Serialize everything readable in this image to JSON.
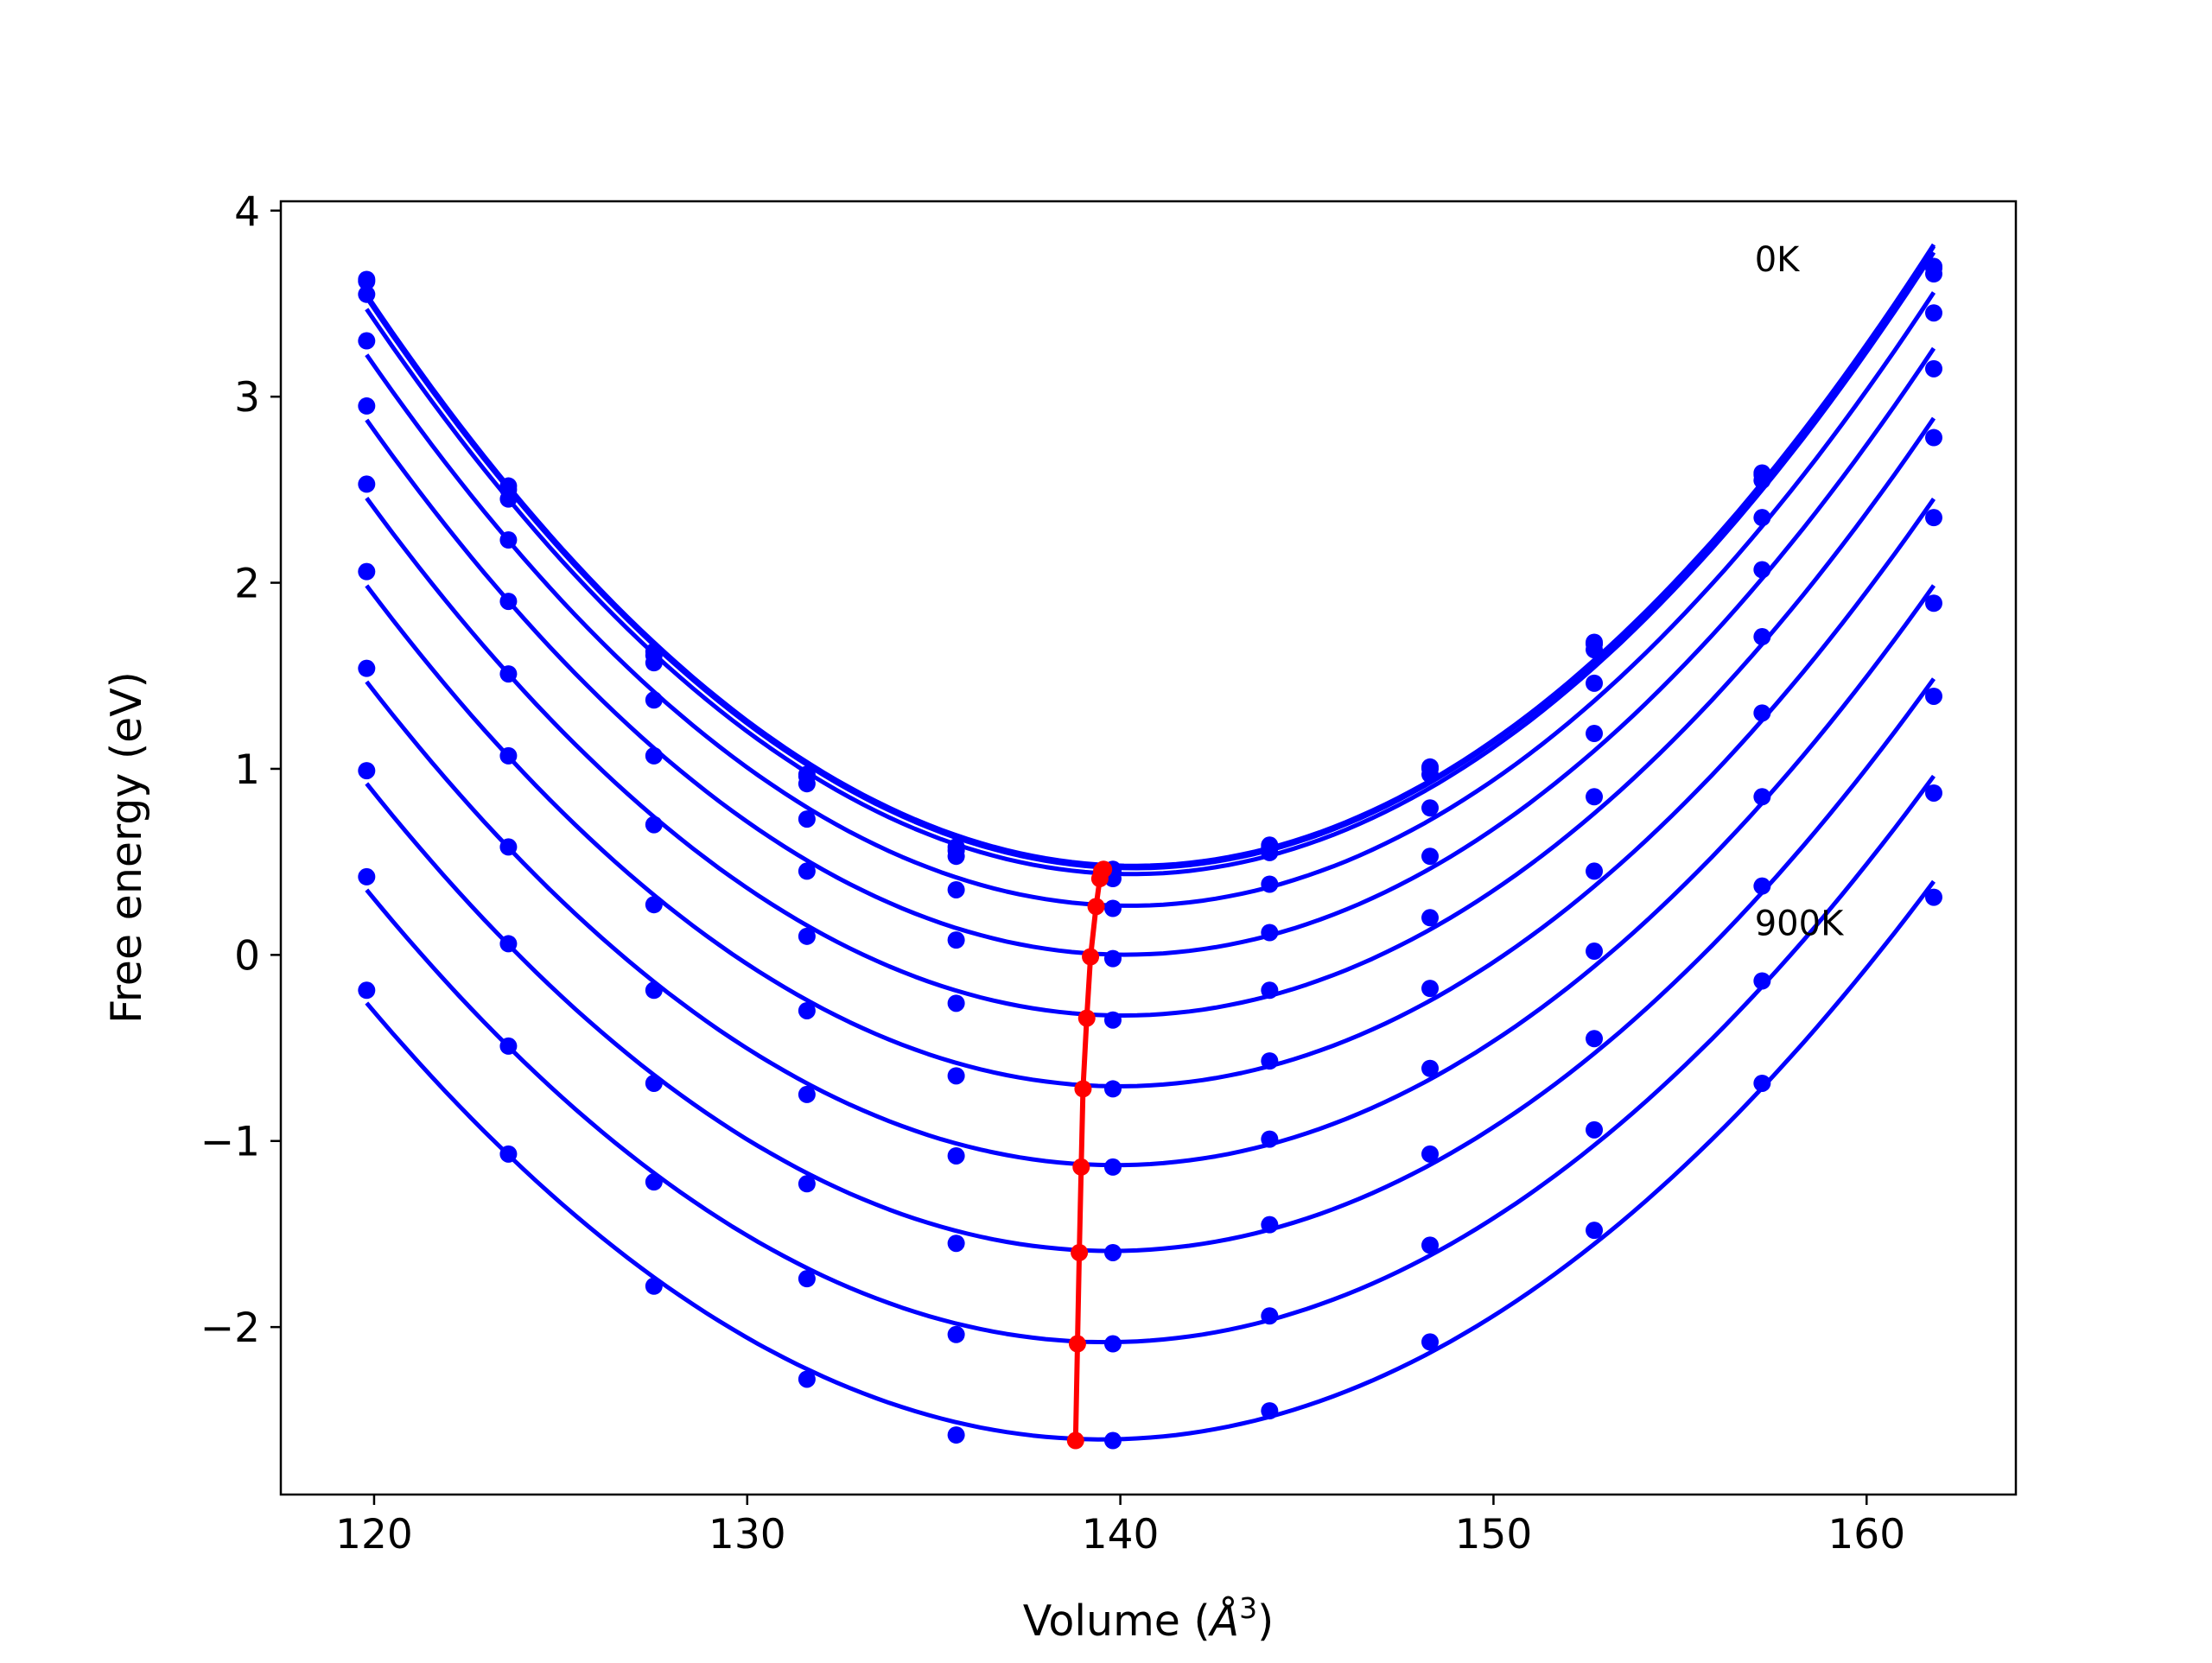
{
  "chart_data": {
    "type": "line",
    "title": "",
    "xlabel": "Volume (",
    "xlabel_unit": "Å",
    "xlabel_exp": "3",
    "xlabel_close": ")",
    "ylabel": "Free energy (eV)",
    "xlim": [
      117.5,
      164.0
    ],
    "ylim": [
      -2.9,
      4.05
    ],
    "xticks": [
      120,
      130,
      140,
      150,
      160
    ],
    "xtick_labels": [
      "120",
      "130",
      "140",
      "150",
      "160"
    ],
    "yticks": [
      -2,
      -1,
      0,
      1,
      2,
      3,
      4
    ],
    "ytick_labels": [
      "−2",
      "−1",
      "0",
      "1",
      "2",
      "3",
      "4"
    ],
    "grid": false,
    "colors": {
      "series": "#0000ff",
      "minimum": "#ff0000"
    },
    "x": [
      119.8,
      123.6,
      127.5,
      131.6,
      135.6,
      139.8,
      144.0,
      148.3,
      152.7,
      157.2,
      161.8
    ],
    "series": [
      {
        "values": [
          3.63,
          2.52,
          1.63,
          0.97,
          0.58,
          0.46,
          0.59,
          1.01,
          1.68,
          2.59,
          3.7
        ]
      },
      {
        "values": [
          3.62,
          2.5,
          1.61,
          0.96,
          0.56,
          0.45,
          0.58,
          1.0,
          1.67,
          2.58,
          3.69
        ]
      },
      {
        "values": [
          3.55,
          2.45,
          1.57,
          0.92,
          0.53,
          0.41,
          0.55,
          0.97,
          1.64,
          2.55,
          3.66
        ]
      },
      {
        "values": [
          3.3,
          2.23,
          1.37,
          0.73,
          0.35,
          0.25,
          0.38,
          0.79,
          1.46,
          2.35,
          3.45
        ]
      },
      {
        "values": [
          2.95,
          1.9,
          1.07,
          0.45,
          0.08,
          -0.02,
          0.12,
          0.53,
          1.19,
          2.07,
          3.15
        ]
      },
      {
        "values": [
          2.53,
          1.51,
          0.7,
          0.1,
          -0.26,
          -0.35,
          -0.19,
          0.2,
          0.85,
          1.71,
          2.78
        ]
      },
      {
        "values": [
          2.06,
          1.07,
          0.27,
          -0.3,
          -0.65,
          -0.72,
          -0.57,
          -0.18,
          0.45,
          1.3,
          2.35
        ]
      },
      {
        "values": [
          1.54,
          0.58,
          -0.19,
          -0.75,
          -1.08,
          -1.14,
          -0.99,
          -0.61,
          0.02,
          0.85,
          1.89
        ]
      },
      {
        "values": [
          0.99,
          0.06,
          -0.69,
          -1.23,
          -1.55,
          -1.6,
          -1.45,
          -1.07,
          -0.45,
          0.37,
          1.39
        ]
      },
      {
        "values": [
          0.42,
          -0.49,
          -1.22,
          -1.74,
          -2.04,
          -2.09,
          -1.94,
          -1.56,
          -0.94,
          -0.14,
          0.87
        ]
      },
      {
        "values": [
          -0.19,
          -1.07,
          -1.78,
          -2.28,
          -2.58,
          -2.61,
          -2.45,
          -2.08,
          -1.48,
          -0.69,
          0.31
        ]
      }
    ],
    "minimum_series": {
      "x": [
        139.55,
        139.5,
        139.45,
        139.35,
        139.2,
        139.1,
        139.0,
        138.95,
        138.9,
        138.85,
        138.8
      ],
      "values": [
        0.46,
        0.45,
        0.41,
        0.26,
        -0.01,
        -0.34,
        -0.72,
        -1.14,
        -1.6,
        -2.09,
        -2.61
      ]
    },
    "annotations": [
      {
        "text": "0K",
        "x": 157.0,
        "y": 3.74
      },
      {
        "text": "900K",
        "x": 157.0,
        "y": 0.17
      }
    ]
  }
}
